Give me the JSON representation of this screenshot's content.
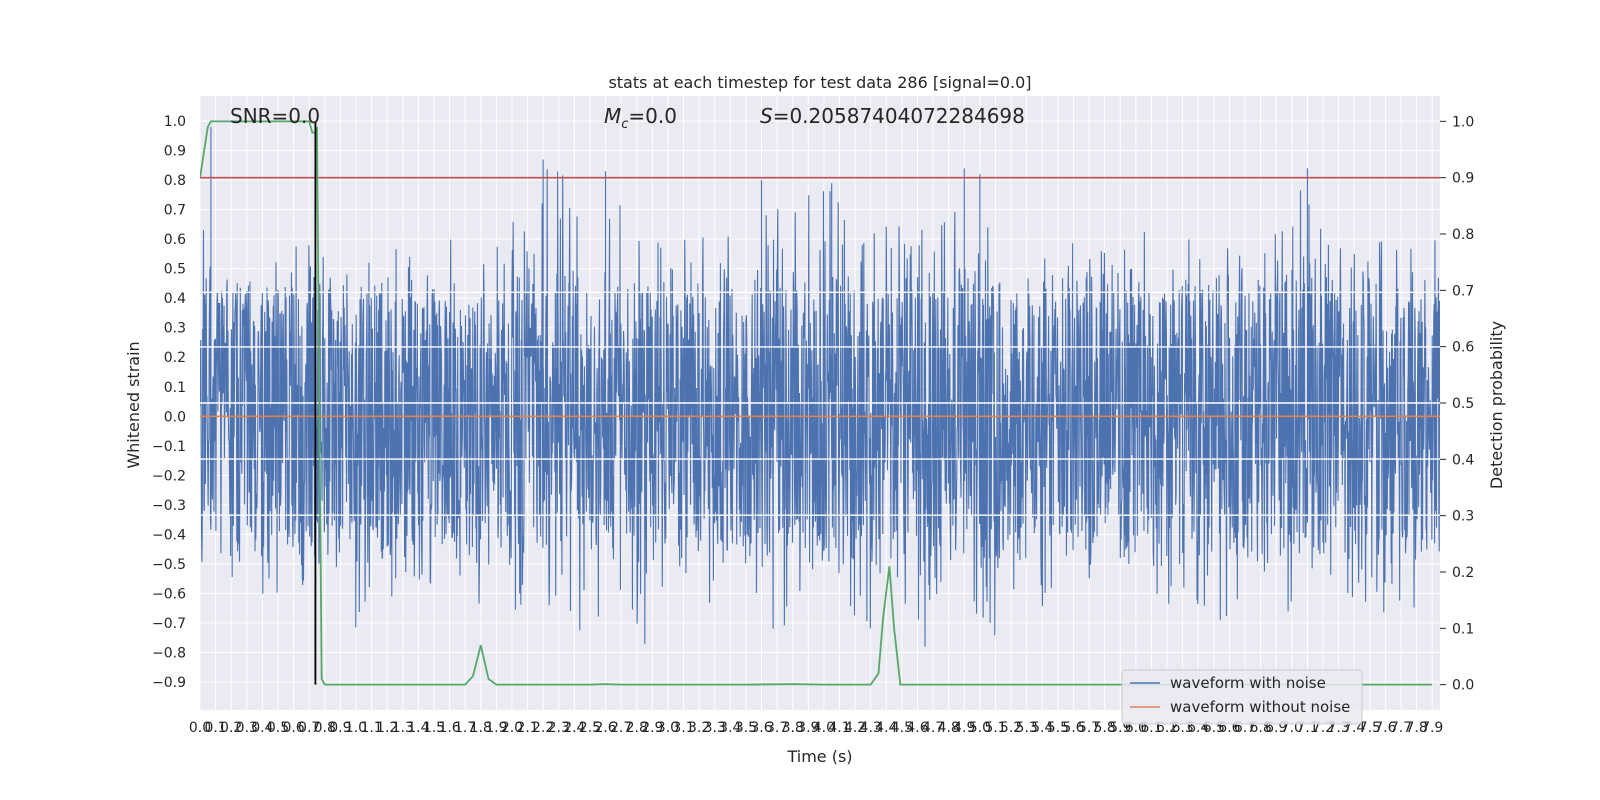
{
  "chart_data": {
    "type": "line",
    "title": "stats at each timestep for test data 286 [signal=0.0]",
    "annotations": {
      "snr": "SNR=0.0",
      "mc_symbol": "M",
      "mc_sub": "c",
      "mc_value": "=0.0",
      "s_symbol": "S",
      "s_value": "=0.20587404072284698"
    },
    "xlabel": "Time (s)",
    "ylabel_left": "Whitened strain",
    "ylabel_right": "Detection probability",
    "xlim": [
      0.0,
      7.95
    ],
    "ylim_left": [
      -0.995,
      1.085
    ],
    "ylim_right": [
      -0.045,
      1.045
    ],
    "x_ticks": [
      0.0,
      0.1,
      0.2,
      0.3,
      0.4,
      0.5,
      0.6,
      0.7,
      0.8,
      0.9,
      1.0,
      1.1,
      1.2,
      1.3,
      1.4,
      1.5,
      1.6,
      1.7,
      1.8,
      1.9,
      2.0,
      2.1,
      2.2,
      2.3,
      2.4,
      2.5,
      2.6,
      2.7,
      2.8,
      2.9,
      3.0,
      3.1,
      3.2,
      3.3,
      3.4,
      3.5,
      3.6,
      3.7,
      3.8,
      3.9,
      4.0,
      4.1,
      4.2,
      4.3,
      4.4,
      4.5,
      4.6,
      4.7,
      4.8,
      4.9,
      5.0,
      5.1,
      5.2,
      5.3,
      5.4,
      5.5,
      5.6,
      5.7,
      5.8,
      5.9,
      6.0,
      6.1,
      6.2,
      6.3,
      6.4,
      6.5,
      6.6,
      6.7,
      6.8,
      6.9,
      7.0,
      7.1,
      7.2,
      7.3,
      7.4,
      7.5,
      7.6,
      7.7,
      7.8,
      7.9
    ],
    "y_ticks_left": [
      -0.9,
      -0.8,
      -0.7,
      -0.6,
      -0.5,
      -0.4,
      -0.3,
      -0.2,
      -0.1,
      0.0,
      0.1,
      0.2,
      0.3,
      0.4,
      0.5,
      0.6,
      0.7,
      0.8,
      0.9,
      1.0
    ],
    "y_ticks_right": [
      0.0,
      0.1,
      0.2,
      0.3,
      0.4,
      0.5,
      0.6,
      0.7,
      0.8,
      0.9,
      1.0
    ],
    "grid": true,
    "legend_placement": "lower-right",
    "series": [
      {
        "name": "waveform with noise",
        "axis": "left",
        "color": "#4c72b0",
        "style": "dense-noise",
        "upper_envelope": [
          [
            0.0,
            0.62
          ],
          [
            0.07,
            0.98
          ],
          [
            0.1,
            0.55
          ],
          [
            0.2,
            0.6
          ],
          [
            0.3,
            0.62
          ],
          [
            0.4,
            0.5
          ],
          [
            0.5,
            0.55
          ],
          [
            0.65,
            0.63
          ],
          [
            0.75,
            0.62
          ],
          [
            0.9,
            0.5
          ],
          [
            1.2,
            0.58
          ],
          [
            1.6,
            0.6
          ],
          [
            1.9,
            0.58
          ],
          [
            2.12,
            0.8
          ],
          [
            2.2,
            0.87
          ],
          [
            2.5,
            0.75
          ],
          [
            2.6,
            0.83
          ],
          [
            3.0,
            0.58
          ],
          [
            3.2,
            0.65
          ],
          [
            3.5,
            0.62
          ],
          [
            3.6,
            0.8
          ],
          [
            3.8,
            0.72
          ],
          [
            4.05,
            0.79
          ],
          [
            4.3,
            0.7
          ],
          [
            4.7,
            0.64
          ],
          [
            4.9,
            0.84
          ],
          [
            5.0,
            0.82
          ],
          [
            5.2,
            0.6
          ],
          [
            5.5,
            0.58
          ],
          [
            5.9,
            0.62
          ],
          [
            6.3,
            0.64
          ],
          [
            6.6,
            0.6
          ],
          [
            6.9,
            0.62
          ],
          [
            7.1,
            0.84
          ],
          [
            7.3,
            0.64
          ],
          [
            7.6,
            0.6
          ],
          [
            7.9,
            0.6
          ]
        ],
        "lower_envelope": [
          [
            0.0,
            -0.52
          ],
          [
            0.2,
            -0.6
          ],
          [
            0.4,
            -0.66
          ],
          [
            0.6,
            -0.58
          ],
          [
            0.8,
            -0.6
          ],
          [
            1.0,
            -0.72
          ],
          [
            1.2,
            -0.62
          ],
          [
            1.5,
            -0.58
          ],
          [
            1.7,
            -0.75
          ],
          [
            1.9,
            -0.65
          ],
          [
            2.2,
            -0.68
          ],
          [
            2.4,
            -0.75
          ],
          [
            2.55,
            -0.8
          ],
          [
            2.75,
            -0.9
          ],
          [
            3.0,
            -0.68
          ],
          [
            3.3,
            -0.72
          ],
          [
            3.5,
            -0.62
          ],
          [
            3.7,
            -0.82
          ],
          [
            4.0,
            -0.62
          ],
          [
            4.3,
            -0.72
          ],
          [
            4.5,
            -0.85
          ],
          [
            4.8,
            -0.74
          ],
          [
            5.0,
            -0.75
          ],
          [
            5.2,
            -0.85
          ],
          [
            5.5,
            -0.66
          ],
          [
            5.8,
            -0.64
          ],
          [
            6.1,
            -0.65
          ],
          [
            6.3,
            -0.7
          ],
          [
            6.6,
            -0.72
          ],
          [
            6.9,
            -0.68
          ],
          [
            7.1,
            -0.63
          ],
          [
            7.4,
            -0.62
          ],
          [
            7.7,
            -0.7
          ],
          [
            7.9,
            -0.6
          ]
        ],
        "core_amplitude": 0.4,
        "spike_amplitude_range": [
          0.3,
          0.55
        ]
      },
      {
        "name": "waveform without noise",
        "axis": "left",
        "color": "#dd8452",
        "x": [
          0.0,
          7.95
        ],
        "y": [
          0.0,
          0.0
        ]
      },
      {
        "name": "detection probability",
        "axis": "right",
        "color": "#55a868",
        "x": [
          0.0,
          0.05,
          0.07,
          0.1,
          0.15,
          0.2,
          0.3,
          0.4,
          0.5,
          0.6,
          0.68,
          0.7,
          0.72,
          0.74,
          0.75,
          0.78,
          0.8,
          0.9,
          1.0,
          1.5,
          1.7,
          1.75,
          1.8,
          1.85,
          1.9,
          2.0,
          2.5,
          2.6,
          2.7,
          3.0,
          3.5,
          3.8,
          4.0,
          4.3,
          4.35,
          4.38,
          4.42,
          4.45,
          4.49,
          5.0,
          6.0,
          7.0,
          7.9
        ],
        "y": [
          0.9,
          0.99,
          1.0,
          1.0,
          1.0,
          1.0,
          1.0,
          1.0,
          1.0,
          1.0,
          1.0,
          1.0,
          0.98,
          0.98,
          0.99,
          0.01,
          0.0,
          0.0,
          0.0,
          0.0,
          0.0,
          0.015,
          0.07,
          0.01,
          0.0,
          0.0,
          0.0,
          0.001,
          0.0,
          0.0,
          0.0,
          0.001,
          0.0,
          0.0,
          0.02,
          0.12,
          0.21,
          0.1,
          0.0,
          0.0,
          0.0,
          0.0,
          0.0
        ]
      },
      {
        "name": "threshold",
        "axis": "right",
        "color": "#c44e52",
        "x": [
          0.0,
          7.95
        ],
        "y": [
          0.9,
          0.9
        ]
      }
    ],
    "vertical_line": {
      "x": 0.74,
      "axis": "right",
      "y_range": [
        0.0,
        1.0
      ],
      "color": "#000000"
    },
    "white_bands_left": [
      0.42,
      0.235,
      0.045,
      -0.145,
      -0.335
    ]
  }
}
